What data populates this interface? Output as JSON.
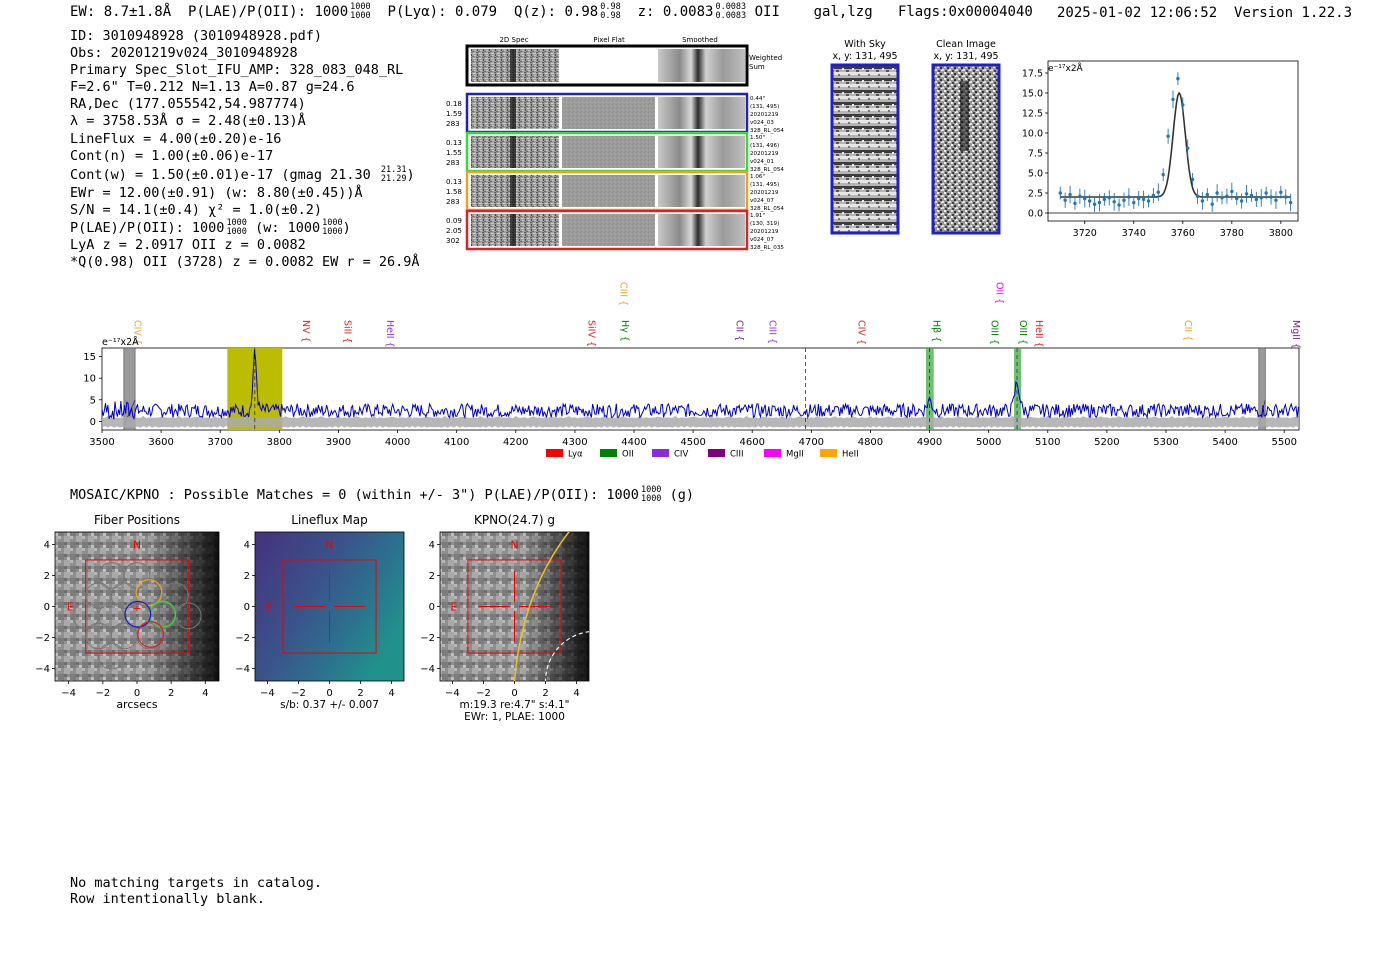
{
  "header": {
    "ew": "EW: 8.7±1.8Å",
    "plae_label": "P(LAE)/P(OII): 1000",
    "plae_hi": "1000",
    "plae_lo": "1000",
    "plya": "P(Lyα): 0.079",
    "qz_label": "Q(z): 0.98",
    "qz_hi": "0.98",
    "qz_lo": "0.98",
    "z_label": "z: 0.0083",
    "z_hi": "0.0083",
    "z_lo": "0.0083",
    "z_line": "OII",
    "classification": "gal,lzg",
    "flags": "Flags:0x00004040",
    "timestamp": "2025-01-02 12:06:52",
    "version": "Version 1.22.3"
  },
  "info": {
    "id": "ID: 3010948928 (3010948928.pdf)",
    "obs": "Obs: 20201219v024_3010948928",
    "primary": "Primary Spec_Slot_IFU_AMP: 328_083_048_RL",
    "fit": "F=2.6\"  T=0.212  N=1.13  A=0.87  g=24.6",
    "radec": "RA,Dec (177.055542,54.987774)",
    "lambda": "λ = 3758.53Å  σ = 2.48(±0.13)Å",
    "lineflux": "LineFlux = 4.00(±0.20)e-16",
    "contn": "Cont(n) = 1.00(±0.06)e-17",
    "contw": "Cont(w) = 1.50(±0.01)e-17 (gmag 21.30",
    "gmag_hi": "21.31",
    "gmag_lo": "21.29",
    "gmag_close": ")",
    "ewr": "EWr = 12.00(±0.91) (w: 8.80(±0.45))Å",
    "sn": "S/N = 14.1(±0.4)  χ² = 1.0(±0.2)",
    "plae2": "P(LAE)/P(OII): 1000",
    "plae2_hi": "1000",
    "plae2_lo": "1000",
    "plae2_w": "(w: 1000",
    "plae2_w_hi": "1000",
    "plae2_w_lo": "1000",
    "plae2_close": ")",
    "lya_z": "LyA z = 2.0917  OII z = 0.0082",
    "q_line": "*Q(0.98) OII (3728) z = 0.0082  EW r = 26.9Å"
  },
  "spec2d": {
    "col_titles": [
      "2D Spec",
      "Pixel Flat",
      "Smoothed"
    ],
    "weighted_sum": [
      "Weighted",
      "Sum"
    ],
    "fibers": [
      {
        "color": "#1f1fcc",
        "left": [
          "0.18",
          "1.59",
          "283"
        ],
        "right": [
          "0.44\"",
          "(131, 495)",
          "20201219",
          "v024_03",
          "328_RL_054"
        ]
      },
      {
        "color": "#33dd33",
        "left": [
          "0.13",
          "1.55",
          "283"
        ],
        "right": [
          "1.50\"",
          "(131, 496)",
          "20201219",
          "v024_01",
          "328_RL_054"
        ]
      },
      {
        "color": "#f0a020",
        "left": [
          "0.13",
          "1.58",
          "283"
        ],
        "right": [
          "1.06\"",
          "(131, 495)",
          "20201219",
          "v024_07",
          "328_RL_054"
        ]
      },
      {
        "color": "#dd2222",
        "left": [
          "0.09",
          "2.05",
          "302"
        ],
        "right": [
          "1.91\"",
          "(130, 319)",
          "20201219",
          "v024_07",
          "328_RL_035"
        ]
      }
    ]
  },
  "cutouts": {
    "with_sky_title": "With Sky",
    "with_sky_coords": "x, y: 131, 495",
    "clean_title": "Clean Image",
    "clean_coords": "x, y: 131, 495"
  },
  "zoom_chart": {
    "unit_label": "e⁻¹⁷x2Å",
    "yticks": [
      "0.0",
      "2.5",
      "5.0",
      "7.5",
      "10.0",
      "12.5",
      "15.0",
      "17.5"
    ],
    "xticks": [
      "3720",
      "3740",
      "3760",
      "3780",
      "3800"
    ]
  },
  "chart_data": [
    {
      "type": "scatter",
      "title": "",
      "xlabel": "",
      "ylabel": "e-17x2Å",
      "xlim": [
        3705,
        3807
      ],
      "ylim": [
        -1,
        19
      ],
      "fit_model": {
        "type": "gaussian",
        "center": 3758.53,
        "sigma": 2.48,
        "amplitude": 13.0,
        "baseline": 2.0
      },
      "x": [
        3710,
        3712,
        3714,
        3716,
        3718,
        3720,
        3722,
        3724,
        3726,
        3728,
        3730,
        3732,
        3734,
        3736,
        3738,
        3740,
        3742,
        3744,
        3746,
        3748,
        3750,
        3752,
        3754,
        3756,
        3758,
        3760,
        3762,
        3764,
        3766,
        3768,
        3770,
        3772,
        3774,
        3776,
        3778,
        3780,
        3782,
        3784,
        3786,
        3788,
        3790,
        3792,
        3794,
        3796,
        3798,
        3800,
        3802,
        3804
      ],
      "y": [
        2.5,
        1.6,
        2.3,
        1.2,
        2.1,
        1.8,
        1.5,
        1.1,
        1.3,
        1.7,
        1.9,
        1.4,
        1.0,
        1.6,
        2.0,
        1.3,
        1.8,
        1.7,
        1.5,
        2.2,
        2.6,
        4.8,
        9.6,
        14.2,
        16.8,
        13.5,
        8.1,
        4.2,
        2.1,
        1.5,
        2.3,
        1.1,
        2.5,
        1.9,
        2.1,
        2.7,
        1.8,
        1.5,
        2.4,
        2.2,
        1.7,
        1.9,
        2.5,
        2.0,
        1.6,
        2.6,
        2.0,
        1.3
      ]
    },
    {
      "type": "line",
      "title": "",
      "xlabel": "",
      "ylabel": "e-17x2Å",
      "xlim": [
        3500,
        5525
      ],
      "ylim": [
        -2,
        17
      ],
      "xticks": [
        3500,
        3600,
        3700,
        3800,
        3900,
        4000,
        4100,
        4200,
        4300,
        4400,
        4500,
        4600,
        4700,
        4800,
        4900,
        5000,
        5100,
        5200,
        5300,
        5400,
        5500
      ],
      "yticks": [
        0,
        5,
        10,
        15
      ],
      "unit_label": "e⁻¹⁷x2Å",
      "highlight_band": [
        3712,
        3805
      ],
      "emission_peaks": [
        {
          "x": 3758.5,
          "y": 15.5
        },
        {
          "x": 4900,
          "y": 5
        },
        {
          "x": 5048,
          "y": 9
        }
      ],
      "continuum_level": 2.5,
      "bad_regions": [
        [
          3537,
          3556
        ],
        [
          5457,
          5468
        ]
      ],
      "green_bands": [
        [
          4894,
          4907
        ],
        [
          5043,
          5055
        ]
      ],
      "dashed_lines": [
        3758.5,
        4690,
        4900,
        5048
      ],
      "line_labels": [
        {
          "name": "CIV",
          "x": 3550,
          "color": "#f0a020"
        },
        {
          "name": "NV",
          "x": 3835,
          "color": "#dd2222"
        },
        {
          "name": "SiII",
          "x": 3905,
          "color": "#dd2222"
        },
        {
          "name": "HeII",
          "x": 3977,
          "color": "#9b30e0"
        },
        {
          "name": "SiIV",
          "x": 4318,
          "color": "#dd2222"
        },
        {
          "name": "CIII",
          "x": 4372,
          "color": "#f0a020",
          "raised": true
        },
        {
          "name": "Hγ",
          "x": 4375,
          "color": "#008800"
        },
        {
          "name": "CII",
          "x": 4568,
          "color": "#7a1a9a"
        },
        {
          "name": "CIII",
          "x": 4624,
          "color": "#9b30e0"
        },
        {
          "name": "CIV",
          "x": 4775,
          "color": "#dd2222"
        },
        {
          "name": "Hβ",
          "x": 4902,
          "color": "#008800"
        },
        {
          "name": "OII",
          "x": 5008,
          "color": "#ff00ff",
          "raised": true
        },
        {
          "name": "OIII",
          "x": 5000,
          "color": "#008800"
        },
        {
          "name": "OIII",
          "x": 5048,
          "color": "#008800"
        },
        {
          "name": "HeII",
          "x": 5075,
          "color": "#dd2222"
        },
        {
          "name": "CII",
          "x": 5327,
          "color": "#f0a020"
        },
        {
          "name": "MgII",
          "x": 5510,
          "color": "#7a1a9a"
        }
      ],
      "legend": [
        {
          "label": "Lyα",
          "color": "#ff0000"
        },
        {
          "label": "OII",
          "color": "#008000"
        },
        {
          "label": "CIV",
          "color": "#8a2be2"
        },
        {
          "label": "CIII",
          "color": "#800080"
        },
        {
          "label": "MgII",
          "color": "#ff00ff"
        },
        {
          "label": "HeII",
          "color": "#ffa500"
        }
      ]
    }
  ],
  "mosaic": {
    "header": "MOSAIC/KPNO : Possible Matches = 0 (within +/- 3\")  P(LAE)/P(OII): 1000",
    "header_hi": "1000",
    "header_lo": "1000",
    "header_band": "(g)",
    "panels": [
      {
        "title": "Fiber Positions",
        "xlabel": "arcsecs",
        "caption": ""
      },
      {
        "title": "Lineflux Map",
        "xlabel": "",
        "caption": "s/b: 0.37 +/- 0.007"
      },
      {
        "title": "KPNO(24.7) g",
        "xlabel": "",
        "caption": "m:19.3  re:4.7\"  s:4.1\"",
        "caption2": "EWr: 1, PLAE: 1000"
      }
    ],
    "ticks": [
      "−4",
      "−2",
      "0",
      "2",
      "4"
    ],
    "north": "N",
    "east": "E"
  },
  "footer": {
    "line1": "No matching targets in catalog.",
    "line2": "Row intentionally blank."
  }
}
